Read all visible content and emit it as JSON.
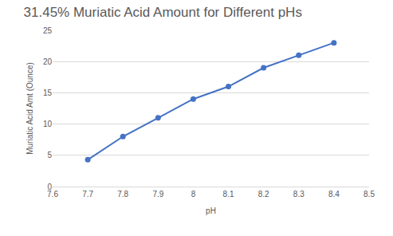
{
  "chart_data": {
    "type": "line",
    "title": "31.45% Muriatic Acid Amount for Different pHs",
    "x_label": "pH",
    "y_label": "Muriatic Acid Amt (Ounce)",
    "x": [
      7.7,
      7.8,
      7.9,
      8.0,
      8.1,
      8.2,
      8.3,
      8.4
    ],
    "values": [
      4.3,
      8,
      11,
      14,
      16,
      19,
      21,
      23
    ],
    "color": "#4472c4",
    "marker": "circle",
    "line_style": "solid",
    "xlim": [
      7.6,
      8.5
    ],
    "xticks": [
      7.6,
      7.7,
      7.8,
      7.9,
      8,
      8.1,
      8.2,
      8.3,
      8.4,
      8.5
    ],
    "ylim": [
      0,
      25
    ],
    "yticks": [
      0,
      5,
      10,
      15,
      20,
      25
    ],
    "grid": true
  }
}
